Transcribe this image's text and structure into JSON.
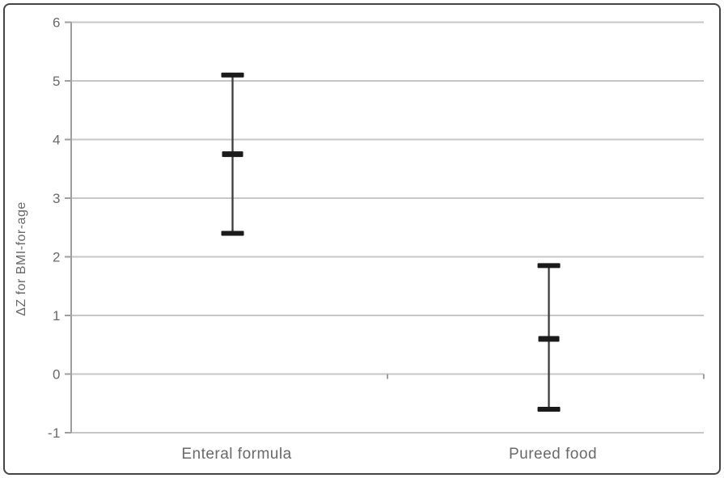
{
  "chart_data": {
    "type": "scatter",
    "subtype": "mean-with-error-bars",
    "title": "",
    "xlabel": "",
    "ylabel": "ΔZ for BMI-for-age",
    "categories": [
      "Enteral formula",
      "Pureed food"
    ],
    "series": [
      {
        "name": "ΔZ for BMI-for-age",
        "means": [
          3.75,
          0.6
        ],
        "upper": [
          5.1,
          1.85
        ],
        "lower": [
          2.4,
          -0.6
        ]
      }
    ],
    "ylim": [
      -1,
      6
    ],
    "yticks": [
      -1,
      0,
      1,
      2,
      3,
      4,
      5,
      6
    ],
    "grid": true,
    "legend": "none"
  },
  "colors": {
    "background": "#ffffff",
    "border": "#454545",
    "gridline": "#c7c7c7",
    "axis": "#9f9f9f",
    "error_line": "#3c3c3c",
    "marker": "#1a1a1a",
    "text": "#6a6a6a"
  }
}
